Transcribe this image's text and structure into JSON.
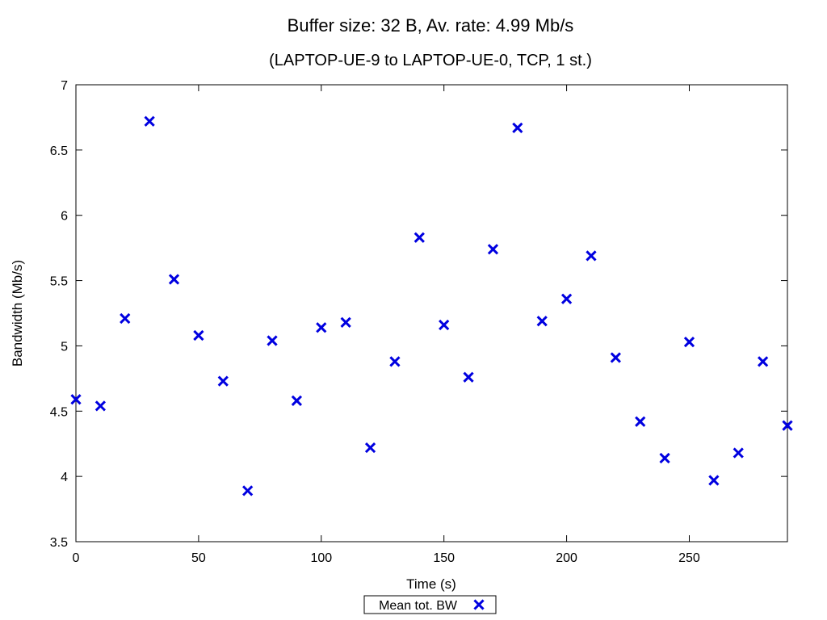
{
  "chart_data": {
    "type": "scatter",
    "title": "Buffer size: 32 B, Av. rate: 4.99 Mb/s",
    "subtitle": "(LAPTOP-UE-9 to LAPTOP-UE-0, TCP, 1 st.)",
    "xlabel": "Time (s)",
    "ylabel": "Bandwidth (Mb/s)",
    "xlim": [
      0,
      290
    ],
    "ylim": [
      3.5,
      7
    ],
    "xticks": [
      0,
      50,
      100,
      150,
      200,
      250
    ],
    "yticks": [
      3.5,
      4,
      4.5,
      5,
      5.5,
      6,
      6.5,
      7
    ],
    "grid": false,
    "legend_position": "bottom-center",
    "series": [
      {
        "name": "Mean tot. BW",
        "marker": "x",
        "color": "#0000e0",
        "x": [
          0,
          10,
          20,
          30,
          40,
          50,
          60,
          70,
          80,
          90,
          100,
          110,
          120,
          130,
          140,
          150,
          160,
          170,
          180,
          190,
          200,
          210,
          220,
          230,
          240,
          250,
          260,
          270,
          280,
          290
        ],
        "y": [
          4.59,
          4.54,
          5.21,
          6.72,
          5.51,
          5.08,
          4.73,
          3.89,
          5.04,
          4.58,
          5.14,
          5.18,
          4.22,
          4.88,
          5.83,
          5.16,
          4.76,
          5.74,
          6.67,
          5.19,
          5.36,
          5.69,
          4.91,
          4.42,
          4.14,
          5.03,
          3.97,
          4.18,
          4.88,
          4.39
        ]
      }
    ]
  }
}
